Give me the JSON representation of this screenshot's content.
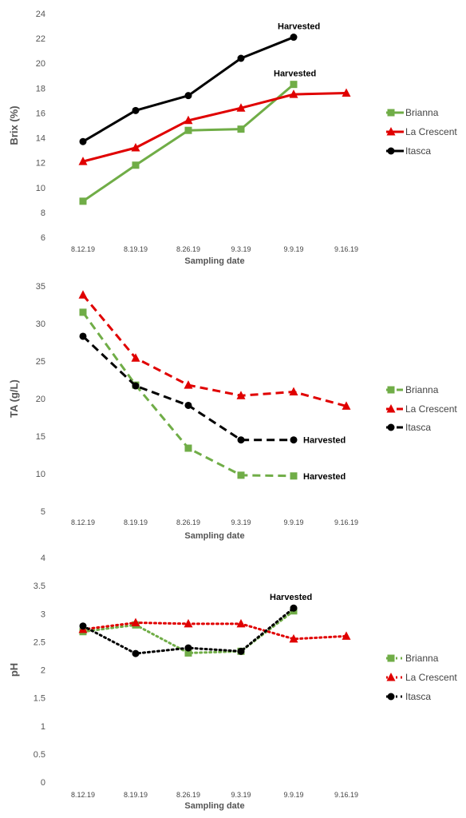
{
  "chart_data": [
    {
      "type": "line",
      "categories": [
        "8.12.19",
        "8.19.19",
        "8.26.19",
        "9.3.19",
        "9.9.19",
        "9.16.19"
      ],
      "xlabel": "Sampling date",
      "ylabel": "Brix (%)",
      "ylim": [
        6,
        24
      ],
      "yticks": [
        6,
        8,
        10,
        12,
        14,
        16,
        18,
        20,
        22,
        24
      ],
      "line_style": "solid",
      "legend_position": "right",
      "series": [
        {
          "name": "Brianna",
          "color": "#70ad47",
          "marker": "square",
          "values": [
            8.9,
            11.8,
            14.6,
            14.7,
            18.3,
            null
          ]
        },
        {
          "name": "La Crescent",
          "color": "#e00000",
          "marker": "triangle",
          "values": [
            12.1,
            13.2,
            15.4,
            16.4,
            17.5,
            17.6
          ]
        },
        {
          "name": "Itasca",
          "color": "#000000",
          "marker": "circle",
          "values": [
            13.7,
            16.2,
            17.4,
            20.4,
            22.1,
            null
          ]
        }
      ],
      "annotations": [
        {
          "text": "Harvested",
          "category": "9.9.19",
          "value": 22.1
        },
        {
          "text": "Harvested",
          "category": "9.9.19",
          "value": 18.3
        }
      ]
    },
    {
      "type": "line",
      "categories": [
        "8.12.19",
        "8.19.19",
        "8.26.19",
        "9.3.19",
        "9.9.19",
        "9.16.19"
      ],
      "xlabel": "Sampling date",
      "ylabel": "TA (g/L)",
      "ylim": [
        5,
        35
      ],
      "yticks": [
        5,
        10,
        15,
        20,
        25,
        30,
        35
      ],
      "line_style": "dashed",
      "legend_position": "right",
      "series": [
        {
          "name": "Brianna",
          "color": "#70ad47",
          "marker": "square",
          "values": [
            31.5,
            21.8,
            13.4,
            9.8,
            9.7,
            null
          ]
        },
        {
          "name": "La Crescent",
          "color": "#e00000",
          "marker": "triangle",
          "values": [
            33.8,
            25.4,
            21.8,
            20.4,
            20.9,
            19.0
          ]
        },
        {
          "name": "Itasca",
          "color": "#000000",
          "marker": "circle",
          "values": [
            28.3,
            21.7,
            19.1,
            14.5,
            14.5,
            null
          ]
        }
      ],
      "annotations": [
        {
          "text": "Harvested",
          "category": "9.9.19",
          "value": 14.5
        },
        {
          "text": "Harvested",
          "category": "9.9.19",
          "value": 9.7
        }
      ]
    },
    {
      "type": "line",
      "categories": [
        "8.12.19",
        "8.19.19",
        "8.26.19",
        "9.3.19",
        "9.9.19",
        "9.16.19"
      ],
      "xlabel": "Sampling date",
      "ylabel": "pH",
      "ylim": [
        0,
        4
      ],
      "yticks": [
        0,
        0.5,
        1,
        1.5,
        2,
        2.5,
        3,
        3.5,
        4
      ],
      "line_style": "dotted",
      "legend_position": "right",
      "series": [
        {
          "name": "Brianna",
          "color": "#70ad47",
          "marker": "square",
          "values": [
            2.68,
            2.8,
            2.3,
            2.33,
            3.05,
            null
          ]
        },
        {
          "name": "La Crescent",
          "color": "#e00000",
          "marker": "triangle",
          "values": [
            2.72,
            2.84,
            2.82,
            2.82,
            2.55,
            2.6
          ]
        },
        {
          "name": "Itasca",
          "color": "#000000",
          "marker": "circle",
          "values": [
            2.78,
            2.29,
            2.39,
            2.33,
            3.1,
            null
          ]
        }
      ],
      "annotations": [
        {
          "text": "Harvested",
          "category": "9.9.19",
          "value": 3.1
        }
      ]
    }
  ]
}
